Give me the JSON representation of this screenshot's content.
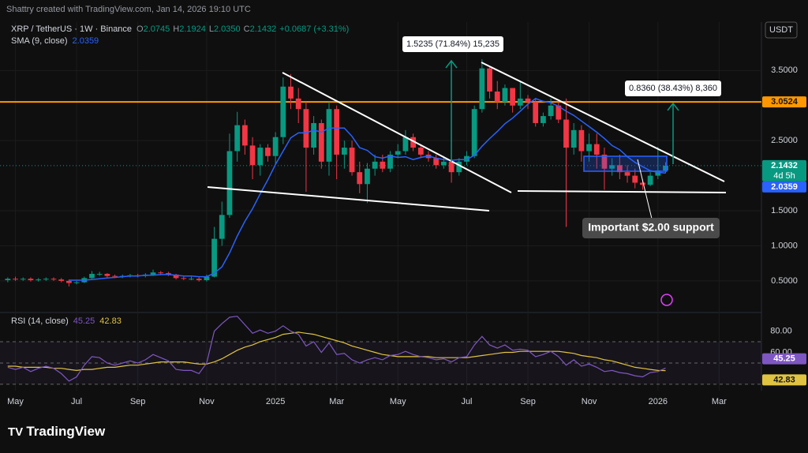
{
  "header": {
    "attribution": "Shattry created with TradingView.com, Jan 14, 2026 19:10 UTC",
    "currency": "USDT"
  },
  "footer": {
    "logo": "TradingView"
  },
  "chart_data": {
    "type": "candlestick",
    "title": "XRP / TetherUS · 1W · Binance",
    "ohlc_prefixes": [
      "O",
      "H",
      "L",
      "C"
    ],
    "legend_values": [
      "2.0745",
      "2.1924",
      "2.0350",
      "2.1432"
    ],
    "change": "+0.0687 (+3.31%)",
    "countdown": "4d 5h",
    "up_color": "#089981",
    "down_color": "#f23645",
    "categories": [
      null,
      "May",
      null,
      null,
      null,
      null,
      null,
      null,
      null,
      "Jul",
      null,
      null,
      null,
      null,
      null,
      null,
      null,
      "Sep",
      null,
      null,
      null,
      null,
      null,
      null,
      null,
      null,
      "Nov",
      null,
      null,
      null,
      null,
      null,
      null,
      null,
      null,
      "2025",
      null,
      null,
      null,
      null,
      null,
      null,
      null,
      "Mar",
      null,
      null,
      null,
      null,
      null,
      null,
      null,
      "May",
      null,
      null,
      null,
      null,
      null,
      null,
      null,
      null,
      "Jul",
      null,
      null,
      null,
      null,
      null,
      null,
      null,
      "Sep",
      null,
      null,
      null,
      null,
      null,
      null,
      null,
      "Nov",
      null,
      null,
      null,
      null,
      null,
      null,
      null,
      null,
      "2026",
      null,
      null,
      null,
      null,
      null,
      null,
      null,
      "Mar",
      null,
      null,
      null,
      null
    ],
    "open": [
      0.51,
      0.53,
      0.52,
      0.53,
      0.51,
      0.52,
      0.53,
      0.52,
      0.5,
      0.47,
      0.48,
      0.54,
      0.6,
      0.6,
      0.57,
      0.56,
      0.57,
      0.58,
      0.57,
      0.59,
      0.62,
      0.61,
      0.59,
      0.54,
      0.53,
      0.53,
      0.51,
      0.56,
      1.1,
      1.44,
      2.35,
      2.72,
      2.43,
      2.15,
      2.4,
      2.28,
      2.55,
      3.27,
      3.1,
      2.95,
      2.4,
      2.75,
      2.2,
      2.95,
      2.3,
      2.4,
      2.05,
      1.88,
      2.1,
      2.2,
      2.1,
      2.3,
      2.35,
      2.55,
      2.4,
      2.3,
      2.25,
      2.15,
      2.2,
      2.05,
      2.2,
      2.28,
      2.95,
      3.53,
      3.2,
      3.05,
      3.25,
      3.0,
      3.1,
      3.05,
      2.75,
      2.85,
      3.0,
      2.8,
      2.4,
      2.65,
      2.35,
      2.45,
      2.3,
      2.1,
      2.15,
      2.05,
      2.0,
      1.9,
      1.87,
      2.0,
      2.0745,
      null,
      null,
      null,
      null,
      null,
      null,
      null,
      null,
      null,
      null,
      null
    ],
    "high": [
      0.55,
      0.56,
      0.55,
      0.55,
      0.54,
      0.55,
      0.55,
      0.54,
      0.52,
      0.5,
      0.56,
      0.64,
      0.63,
      0.61,
      0.59,
      0.59,
      0.6,
      0.6,
      0.61,
      0.66,
      0.64,
      0.63,
      0.6,
      0.56,
      0.56,
      0.55,
      0.59,
      1.27,
      1.63,
      2.6,
      2.91,
      2.8,
      2.55,
      2.45,
      2.45,
      2.62,
      3.4,
      3.45,
      3.25,
      3.05,
      2.85,
      2.8,
      3.05,
      3.0,
      2.5,
      2.5,
      2.2,
      2.18,
      2.3,
      2.3,
      2.35,
      2.45,
      2.65,
      2.6,
      2.45,
      2.35,
      2.3,
      2.28,
      2.25,
      2.25,
      2.35,
      3.0,
      3.66,
      3.55,
      3.35,
      3.3,
      3.25,
      3.35,
      3.15,
      3.1,
      2.9,
      3.1,
      3.05,
      3.1,
      2.75,
      2.72,
      2.6,
      2.6,
      2.4,
      2.25,
      2.3,
      2.15,
      2.1,
      1.95,
      2.05,
      2.41,
      2.1924,
      null,
      null,
      null,
      null,
      null,
      null,
      null,
      null,
      null,
      null,
      null
    ],
    "low": [
      0.48,
      0.5,
      0.5,
      0.49,
      0.49,
      0.5,
      0.5,
      0.48,
      0.42,
      0.45,
      0.47,
      0.53,
      0.57,
      0.55,
      0.54,
      0.54,
      0.55,
      0.55,
      0.55,
      0.58,
      0.58,
      0.57,
      0.52,
      0.51,
      0.51,
      0.49,
      0.49,
      0.55,
      1.0,
      1.4,
      2.2,
      2.3,
      1.95,
      2.0,
      2.2,
      2.16,
      2.45,
      2.95,
      2.75,
      1.77,
      2.3,
      2.1,
      2.0,
      1.95,
      2.1,
      2.0,
      1.75,
      1.61,
      2.0,
      2.05,
      2.05,
      2.25,
      2.3,
      2.35,
      2.25,
      2.2,
      2.1,
      2.1,
      1.9,
      2.0,
      2.15,
      2.25,
      2.9,
      3.1,
      2.95,
      3.0,
      2.9,
      2.95,
      2.95,
      2.7,
      2.7,
      2.8,
      2.75,
      1.27,
      2.3,
      2.2,
      2.2,
      2.1,
      1.8,
      2.0,
      1.95,
      1.9,
      1.82,
      1.8,
      1.85,
      1.95,
      2.035,
      null,
      null,
      null,
      null,
      null,
      null,
      null,
      null,
      null,
      null,
      null
    ],
    "close": [
      0.53,
      0.52,
      0.53,
      0.51,
      0.52,
      0.53,
      0.52,
      0.5,
      0.47,
      0.48,
      0.54,
      0.6,
      0.6,
      0.57,
      0.56,
      0.57,
      0.58,
      0.57,
      0.59,
      0.62,
      0.61,
      0.59,
      0.54,
      0.53,
      0.53,
      0.51,
      0.56,
      1.1,
      1.44,
      2.35,
      2.72,
      2.43,
      2.15,
      2.4,
      2.28,
      2.55,
      3.27,
      3.1,
      2.95,
      2.4,
      2.75,
      2.2,
      2.95,
      2.3,
      2.4,
      2.05,
      1.88,
      2.1,
      2.2,
      2.1,
      2.3,
      2.35,
      2.55,
      2.4,
      2.3,
      2.25,
      2.15,
      2.2,
      2.05,
      2.2,
      2.28,
      2.95,
      3.53,
      3.2,
      3.05,
      3.25,
      3.0,
      3.1,
      3.05,
      2.75,
      2.85,
      3.0,
      2.8,
      2.4,
      2.65,
      2.35,
      2.45,
      2.3,
      2.1,
      2.15,
      2.05,
      2.0,
      1.9,
      1.87,
      2.0,
      2.0745,
      2.1432,
      null,
      null,
      null,
      null,
      null,
      null,
      null,
      null,
      null,
      null,
      null
    ],
    "sma": {
      "name": "SMA (9, close)",
      "color": "#2962ff",
      "values": [
        null,
        null,
        null,
        null,
        null,
        null,
        null,
        null,
        0.51,
        0.51,
        0.51,
        0.52,
        0.53,
        0.54,
        0.55,
        0.56,
        0.57,
        0.57,
        0.58,
        0.58,
        0.59,
        0.59,
        0.58,
        0.57,
        0.57,
        0.56,
        0.56,
        0.61,
        0.7,
        0.9,
        1.14,
        1.35,
        1.53,
        1.74,
        1.94,
        2.16,
        2.35,
        2.54,
        2.61,
        2.61,
        2.65,
        2.62,
        2.68,
        2.68,
        2.68,
        2.56,
        2.4,
        2.36,
        2.27,
        2.25,
        2.28,
        2.26,
        2.27,
        2.23,
        2.26,
        2.28,
        2.25,
        2.23,
        2.22,
        2.23,
        2.23,
        2.29,
        2.42,
        2.53,
        2.63,
        2.74,
        2.82,
        2.92,
        3.02,
        3.1,
        3.06,
        3.04,
        2.99,
        2.92,
        2.86,
        2.78,
        2.7,
        2.62,
        2.53,
        2.43,
        2.37,
        2.27,
        2.19,
        2.13,
        2.07,
        2.05,
        2.0359,
        null,
        null,
        null,
        null,
        null,
        null,
        null,
        null,
        null,
        null,
        null
      ]
    },
    "resistance": {
      "value": 3.0524,
      "color": "#ff9800"
    },
    "ylim": [
      0.06,
      4.19
    ],
    "yticks": [
      {
        "value": 0.5,
        "label": "0.5000"
      },
      {
        "value": 1.0,
        "label": "1.0000"
      },
      {
        "value": 1.5,
        "label": "1.5000"
      },
      {
        "value": 2.5,
        "label": "2.5000"
      },
      {
        "value": 3.5,
        "label": "3.5000"
      }
    ],
    "grid": true,
    "annotations": [
      "1.5235 (71.84%) 15,235",
      "0.8360 (38.43%) 8,360",
      "Important $2.00 support"
    ],
    "rsi": {
      "name": "RSI (14, close)",
      "color": "#7e57c2",
      "ma_color": "#e0c341",
      "values": [
        46,
        44,
        46,
        42,
        45,
        47,
        45,
        40,
        33,
        37,
        48,
        56,
        55,
        50,
        48,
        50,
        52,
        50,
        53,
        58,
        55,
        52,
        44,
        43,
        43,
        40,
        50,
        80,
        87,
        93,
        94,
        86,
        78,
        81,
        78,
        80,
        85,
        80,
        77,
        66,
        70,
        60,
        69,
        58,
        59,
        53,
        50,
        53,
        55,
        53,
        57,
        58,
        61,
        58,
        56,
        55,
        53,
        54,
        51,
        55,
        56,
        67,
        75,
        67,
        64,
        67,
        62,
        63,
        62,
        56,
        58,
        61,
        56,
        48,
        53,
        47,
        49,
        46,
        42,
        43,
        41,
        40,
        38,
        37,
        41,
        42,
        45.25,
        null,
        null,
        null,
        null,
        null,
        null,
        null,
        null,
        null,
        null,
        null
      ],
      "ma_values": [
        47,
        47,
        46,
        46,
        46,
        46,
        45,
        45,
        44,
        43,
        44,
        44,
        45,
        46,
        46,
        47,
        48,
        48,
        49,
        50,
        51,
        51,
        51,
        51,
        50,
        49,
        49,
        51,
        54,
        58,
        62,
        65,
        67,
        70,
        72,
        74,
        77,
        78,
        79,
        78,
        77,
        75,
        73,
        71,
        69,
        66,
        64,
        62,
        60,
        58,
        57,
        56,
        56,
        56,
        56,
        56,
        55,
        55,
        55,
        55,
        55,
        56,
        57,
        58,
        59,
        60,
        60,
        61,
        61,
        61,
        61,
        61,
        61,
        60,
        59,
        57,
        56,
        55,
        53,
        52,
        50,
        48,
        46,
        45,
        44,
        43,
        42.83,
        null,
        null,
        null,
        null,
        null,
        null,
        null,
        null,
        null,
        null,
        null
      ],
      "ylim": [
        24,
        96
      ],
      "yticks": [
        {
          "value": 80,
          "label": "80.00"
        },
        {
          "value": 60,
          "label": "60.00"
        }
      ],
      "levels": [
        70,
        50,
        30
      ]
    }
  }
}
